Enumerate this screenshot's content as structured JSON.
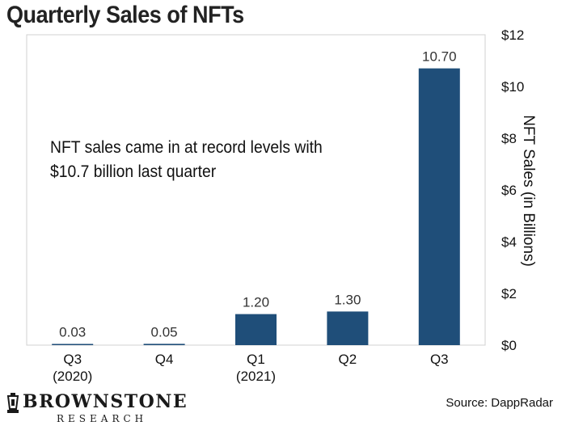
{
  "header": {
    "title": "Quarterly Sales of NFTs"
  },
  "annotation": "NFT sales came in at record levels with $10.7 billion last quarter",
  "footer": {
    "logo_word": "BROWNSTONE",
    "logo_sub": "RESEARCH",
    "source": "Source: DappRadar"
  },
  "colors": {
    "bar": "#1f4e79",
    "frame": "#d0d0d0"
  },
  "chart_data": {
    "type": "bar",
    "title": "Quarterly Sales of NFTs",
    "ylabel": "NFT Sales (in Billions)",
    "xlabel": "",
    "categories": [
      {
        "line1": "Q3",
        "line2": "(2020)"
      },
      {
        "line1": "Q4",
        "line2": ""
      },
      {
        "line1": "Q1",
        "line2": "(2021)"
      },
      {
        "line1": "Q2",
        "line2": ""
      },
      {
        "line1": "Q3",
        "line2": ""
      }
    ],
    "values": [
      0.03,
      0.05,
      1.2,
      1.3,
      10.7
    ],
    "data_labels": [
      "0.03",
      "0.05",
      "1.20",
      "1.30",
      "10.70"
    ],
    "ylim": [
      0,
      12
    ],
    "yticks": [
      0,
      2,
      4,
      6,
      8,
      10,
      12
    ],
    "ytick_labels": [
      "$0",
      "$2",
      "$4",
      "$6",
      "$8",
      "$10",
      "$12"
    ],
    "y_axis_position": "right",
    "grid": false,
    "legend": "none"
  }
}
